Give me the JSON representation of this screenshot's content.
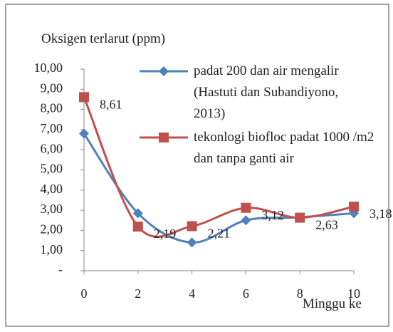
{
  "chart_data": {
    "type": "line",
    "y_label": "Oksigen terlarut (ppm)",
    "x_label": "Minggu ke",
    "x": [
      0,
      2,
      4,
      6,
      8,
      10
    ],
    "xlim": [
      0,
      10
    ],
    "xticks": [
      0,
      2,
      4,
      6,
      8,
      10
    ],
    "ylim": [
      0,
      10
    ],
    "yticks": [
      {
        "value": 0,
        "label": "-"
      },
      {
        "value": 1,
        "label": "1,00"
      },
      {
        "value": 2,
        "label": "2,00"
      },
      {
        "value": 3,
        "label": "3,00"
      },
      {
        "value": 4,
        "label": "4,00"
      },
      {
        "value": 5,
        "label": "5,00"
      },
      {
        "value": 6,
        "label": "6,00"
      },
      {
        "value": 7,
        "label": "7,00"
      },
      {
        "value": 8,
        "label": "8,00"
      },
      {
        "value": 9,
        "label": "9,00"
      },
      {
        "value": 10,
        "label": "10,00"
      }
    ],
    "smooth": true,
    "series": [
      {
        "name": "padat 200 dan air mengalir (Hastuti dan Subandiyono, 2013)",
        "color": "#4f81bd",
        "marker": "diamond",
        "values": [
          6.8,
          2.85,
          1.4,
          2.5,
          2.65,
          2.85
        ]
      },
      {
        "name": "tekonlogi biofloc padat 1000 /m2 dan tanpa ganti air",
        "color": "#c0504d",
        "marker": "square",
        "values": [
          8.61,
          2.19,
          2.21,
          3.12,
          2.63,
          3.18
        ],
        "value_labels": [
          "8,61",
          "2,19",
          "2,21",
          "3,12",
          "2,63",
          "3,18"
        ]
      }
    ]
  }
}
